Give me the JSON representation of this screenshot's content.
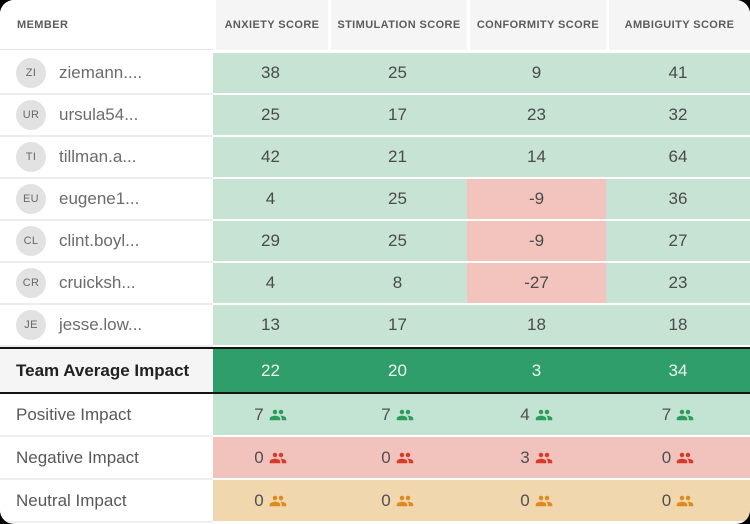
{
  "table": {
    "member_header": "MEMBER",
    "score_headers": [
      "ANXIETY SCORE",
      "STIMULATION SCORE",
      "CONFORMITY SCORE",
      "AMBIGUITY SCORE"
    ],
    "members": [
      {
        "initials": "ZI",
        "name": "ziemann....",
        "scores": [
          38,
          25,
          9,
          41
        ]
      },
      {
        "initials": "UR",
        "name": "ursula54...",
        "scores": [
          25,
          17,
          23,
          32
        ]
      },
      {
        "initials": "TI",
        "name": "tillman.a...",
        "scores": [
          42,
          21,
          14,
          64
        ]
      },
      {
        "initials": "EU",
        "name": "eugene1...",
        "scores": [
          4,
          25,
          -9,
          36
        ]
      },
      {
        "initials": "CL",
        "name": "clint.boyl...",
        "scores": [
          29,
          25,
          -9,
          27
        ]
      },
      {
        "initials": "CR",
        "name": "cruicksh...",
        "scores": [
          4,
          8,
          -27,
          23
        ]
      },
      {
        "initials": "JE",
        "name": "jesse.low...",
        "scores": [
          13,
          17,
          18,
          18
        ]
      }
    ],
    "team_average": {
      "label": "Team Average Impact",
      "scores": [
        22,
        20,
        3,
        34
      ]
    },
    "impact_rows": [
      {
        "label": "Positive Impact",
        "type": "positive",
        "counts": [
          7,
          7,
          4,
          7
        ]
      },
      {
        "label": "Negative Impact",
        "type": "negative",
        "counts": [
          0,
          0,
          3,
          0
        ]
      },
      {
        "label": "Neutral Impact",
        "type": "neutral",
        "counts": [
          0,
          0,
          0,
          0
        ]
      }
    ],
    "colors": {
      "cell_positive_bg": "#c6e3d3",
      "cell_negative_bg": "#f2c4bd",
      "team_average_bg": "#2f9e6b",
      "impact_positive_bg": "#c4e4d3",
      "impact_negative_bg": "#f2c3bd",
      "impact_neutral_bg": "#f1d7ae",
      "icon_positive": "#2a9d5c",
      "icon_negative": "#d63b2b",
      "icon_neutral": "#dd8a1f"
    }
  }
}
